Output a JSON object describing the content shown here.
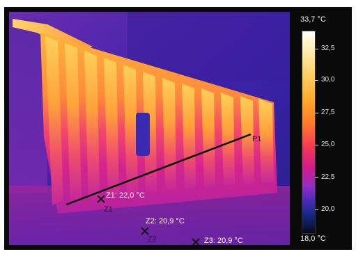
{
  "scale": {
    "max_label": "33,7 °C",
    "min_label": "18,0 °C",
    "ticks": [
      "32,5",
      "30,0",
      "27,5",
      "25,0",
      "22,5",
      "20,0"
    ]
  },
  "line": {
    "label": "P1"
  },
  "markers": [
    {
      "label": "Z1: 22,0 °C",
      "id_label": "Z1"
    },
    {
      "label": "Z2: 20,9 °C",
      "id_label": "Z2"
    },
    {
      "label": "Z3: 20,9 °C",
      "id_label": "Z3"
    }
  ]
}
